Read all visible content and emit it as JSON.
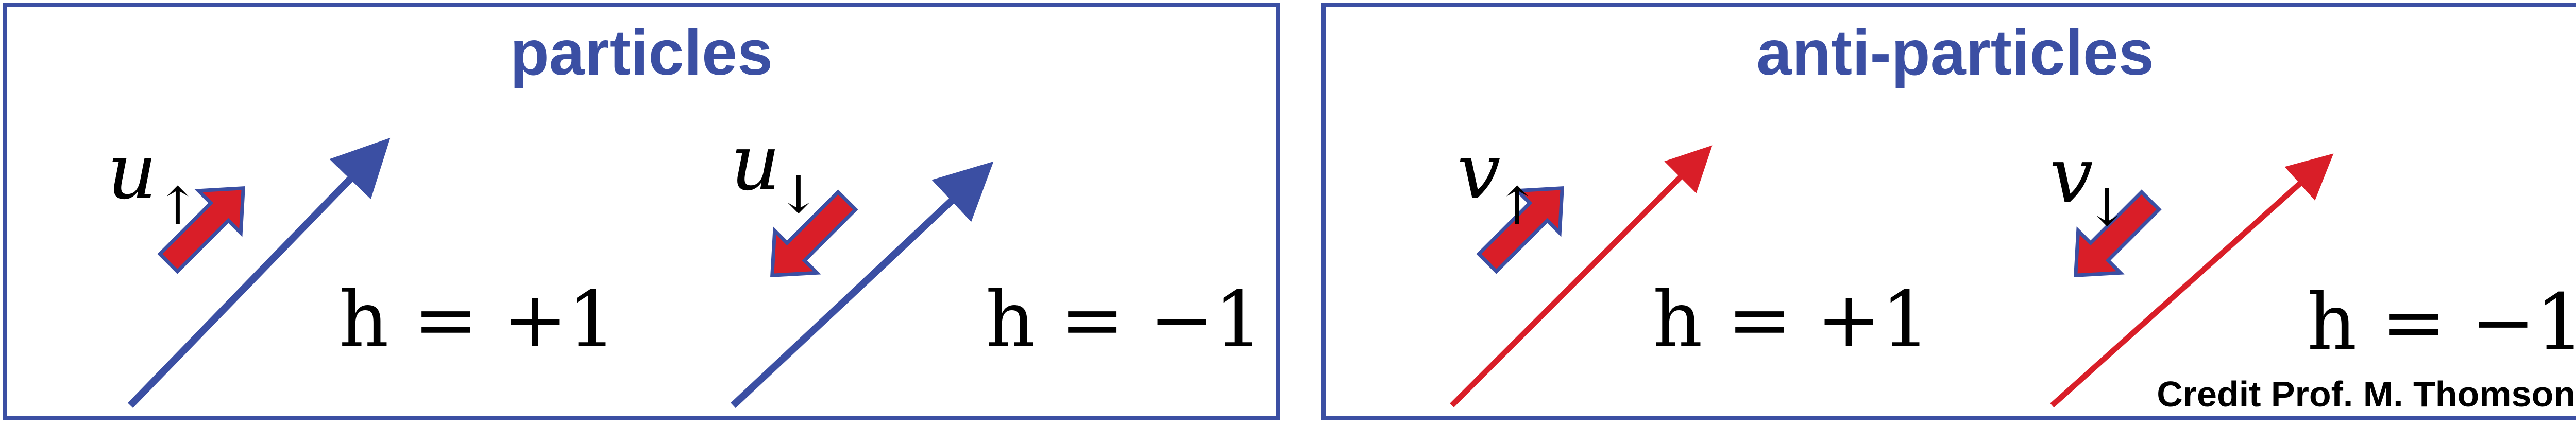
{
  "colors": {
    "border": "#3b4fa3",
    "particle_line": "#3b4fa3",
    "antiparticle_line": "#d91e28",
    "spin_arrow_fill": "#d91e28",
    "spin_arrow_stroke": "#3b4fa3",
    "title": "#3b4fa3"
  },
  "panels": [
    {
      "title": "particles",
      "states": [
        {
          "symbol": "u",
          "spin_glyph": "↑",
          "helicity_label": "h = +1",
          "spin_direction": "up-right",
          "momentum_color": "blue"
        },
        {
          "symbol": "u",
          "spin_glyph": "↓",
          "helicity_label": "h = −1",
          "spin_direction": "down-left",
          "momentum_color": "blue"
        }
      ]
    },
    {
      "title": "anti-particles",
      "states": [
        {
          "symbol": "v",
          "spin_glyph": "↑",
          "helicity_label": "h = +1",
          "spin_direction": "up-right",
          "momentum_color": "red"
        },
        {
          "symbol": "v",
          "spin_glyph": "↓",
          "helicity_label": "h = −1",
          "spin_direction": "down-left",
          "momentum_color": "red"
        }
      ]
    }
  ],
  "credit": "Credit Prof. M. Thomson"
}
